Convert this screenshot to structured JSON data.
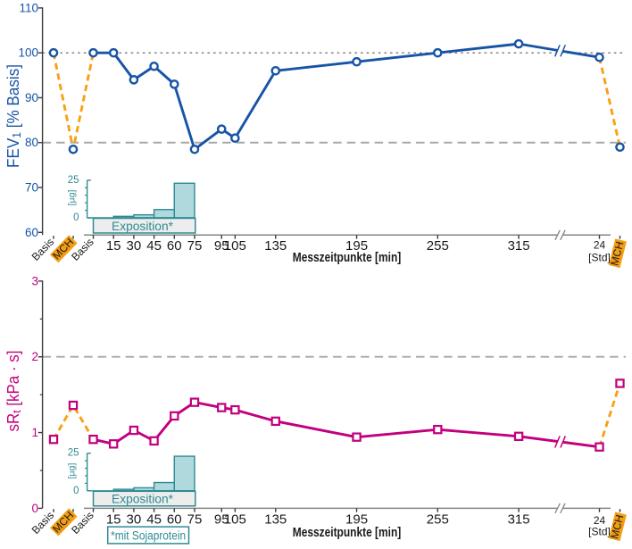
{
  "figure": {
    "background": "#ffffff",
    "x_axis_title": "Messzeitpunkte [min]",
    "footnote": "*mit Sojaprotein",
    "challenge_color": "#f7a115",
    "challenge_box_color": "#f29d13",
    "x_points": [
      {
        "label": "Basis",
        "kind": "pre"
      },
      {
        "label": "MCH",
        "kind": "pre",
        "highlight": true
      },
      {
        "label": "Basis",
        "t": 0,
        "rotated": true
      },
      {
        "label": "15",
        "t": 15
      },
      {
        "label": "30",
        "t": 30
      },
      {
        "label": "45",
        "t": 45
      },
      {
        "label": "60",
        "t": 60
      },
      {
        "label": "75",
        "t": 75
      },
      {
        "label": "95",
        "t": 95
      },
      {
        "label": "105",
        "t": 105
      },
      {
        "label": "135",
        "t": 135
      },
      {
        "label": "195",
        "t": 195
      },
      {
        "label": "255",
        "t": 255
      },
      {
        "label": "315",
        "t": 315
      },
      {
        "label": "24",
        "sublabel": "[Std]",
        "kind": "late"
      },
      {
        "label": "MCH",
        "kind": "post",
        "highlight": true
      }
    ]
  },
  "chart_data": [
    {
      "type": "line",
      "panel": "top",
      "ylabel": {
        "base": "FEV",
        "sub": "1",
        "rest": " [% Basis]"
      },
      "series_color": "#1854a6",
      "marker": "circle",
      "ylim": [
        60,
        110
      ],
      "yticks": [
        60,
        70,
        80,
        90,
        100,
        110
      ],
      "minor_yticks": [],
      "ref_lines": [
        {
          "value": 100,
          "style": "dotted",
          "color": "#5a5a5a"
        },
        {
          "value": 80,
          "style": "dashed",
          "color": "#a8a8a8"
        }
      ],
      "categories": [
        "Basis",
        "MCH",
        "Basis",
        "15",
        "30",
        "45",
        "60",
        "75",
        "95",
        "105",
        "135",
        "195",
        "255",
        "315",
        "24 Std",
        "MCH"
      ],
      "values": [
        100,
        78.5,
        100,
        100,
        94,
        97,
        93,
        78.5,
        83,
        81,
        96,
        98,
        100,
        102,
        99,
        79
      ],
      "dashed_challenge_segments": [
        [
          0,
          2
        ],
        [
          14,
          15
        ]
      ],
      "solid_segment": [
        2,
        14
      ],
      "axis_break_between": [
        "315",
        "24 Std"
      ]
    },
    {
      "type": "line",
      "panel": "bottom",
      "ylabel": {
        "base": "sR",
        "sub": "t",
        "rest": " [kPa · s]"
      },
      "series_color": "#c2007f",
      "marker": "square",
      "ylim": [
        0,
        3
      ],
      "yticks": [
        0,
        1,
        2,
        3
      ],
      "minor_yticks": [
        0.5,
        1.5,
        2.5
      ],
      "ref_lines": [
        {
          "value": 2,
          "style": "dashed",
          "color": "#a8a8a8"
        }
      ],
      "categories": [
        "Basis",
        "MCH",
        "Basis",
        "15",
        "30",
        "45",
        "60",
        "75",
        "95",
        "105",
        "135",
        "195",
        "255",
        "315",
        "24 Std",
        "MCH"
      ],
      "values": [
        0.91,
        1.36,
        0.91,
        0.85,
        1.03,
        0.89,
        1.22,
        1.4,
        1.33,
        1.3,
        1.15,
        0.94,
        1.04,
        0.95,
        0.81,
        1.65
      ],
      "dashed_challenge_segments": [
        [
          0,
          2
        ],
        [
          14,
          15
        ]
      ],
      "solid_segment": [
        2,
        14
      ],
      "axis_break_between": [
        "315",
        "24 Std"
      ]
    }
  ],
  "exposure_inset": {
    "type": "bar",
    "ylabel": "[µg]",
    "yticks": [
      0,
      25
    ],
    "minor_yticks": [
      5,
      10,
      15,
      20
    ],
    "box_label": "Exposition*",
    "bar_edges_min": [
      0,
      15,
      30,
      45,
      60,
      75
    ],
    "values": [
      0,
      1,
      2,
      5.5,
      23
    ],
    "bar_fill": "#b0d9dd",
    "teal": "#2e8b94",
    "box_fill": "#ededed"
  },
  "style": {
    "axis_line_color": "#848484",
    "y_axis_color": "#3a3a3a",
    "tick_color": "#3a3a3a",
    "label_color": "#1a1a1a"
  }
}
